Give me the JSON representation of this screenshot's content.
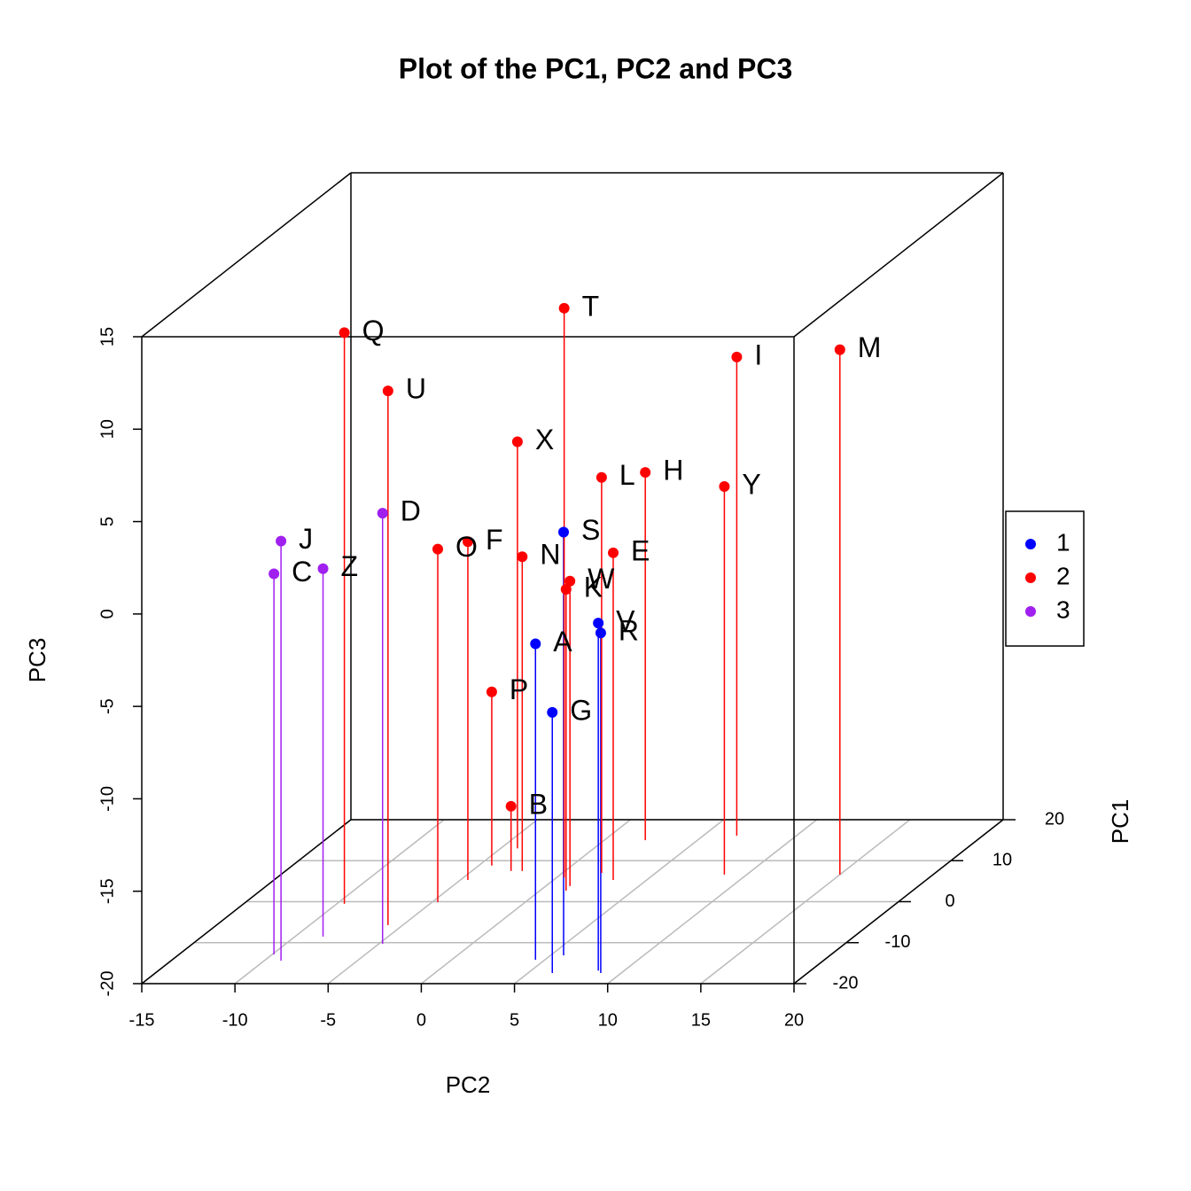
{
  "chart_data": {
    "type": "scatter3d",
    "title": "Plot of the PC1, PC2 and PC3",
    "x_label": "PC2",
    "y_label": "PC1",
    "z_label": "PC3",
    "xlim": [
      -15,
      20
    ],
    "xticks": [
      -15,
      -10,
      -5,
      0,
      5,
      10,
      15,
      20
    ],
    "ylim": [
      -20,
      20
    ],
    "yticks": [
      -20,
      -10,
      0,
      10,
      20
    ],
    "zlim": [
      -20,
      15
    ],
    "zticks": [
      -20,
      -15,
      -10,
      -5,
      0,
      5,
      10,
      15
    ],
    "grid": true,
    "legend": "right",
    "series": [
      {
        "name": "1",
        "color": "#0000ff",
        "labels": [
          "S",
          "A",
          "G",
          "V",
          "R"
        ],
        "x": [
          5.7,
          4.5,
          6.3,
          8.6,
          8.9
        ],
        "y": [
          -13.1,
          -14.2,
          -17.4,
          -16.8,
          -17.4
        ],
        "z": [
          2.9,
          -2.9,
          -5.9,
          -1.2,
          -1.6
        ]
      },
      {
        "name": "2",
        "color": "#ff0000",
        "labels": [
          "Q",
          "U",
          "T",
          "M",
          "I",
          "Y",
          "H",
          "L",
          "X",
          "N",
          "E",
          "F",
          "O",
          "W",
          "K",
          "P",
          "B"
        ],
        "x": [
          -9.6,
          -5.8,
          0.4,
          15.0,
          6.8,
          8.8,
          2.2,
          2.1,
          -4.1,
          -2.3,
          3.2,
          -4.6,
          -4.7,
          1.3,
          1.4,
          -4.3,
          -2.9
        ],
        "y": [
          -0.5,
          -5.7,
          5.9,
          6.6,
          16.1,
          6.6,
          15.0,
          7.0,
          13.0,
          7.5,
          5.3,
          5.3,
          -0.1,
          3.8,
          2.7,
          8.8,
          7.5
        ],
        "z": [
          10.9,
          8.9,
          10.8,
          8.4,
          5.9,
          1.0,
          -0.1,
          1.4,
          2.0,
          -3.0,
          -2.3,
          -1.7,
          -0.9,
          -3.5,
          -3.7,
          -10.6,
          -16.5
        ]
      },
      {
        "name": "3",
        "color": "#a020f0",
        "labels": [
          "J",
          "C",
          "Z",
          "D"
        ],
        "x": [
          -9.1,
          -9.9,
          -8.5,
          -4.8
        ],
        "y": [
          -14.4,
          -12.9,
          -8.5,
          -10.3
        ],
        "z": [
          2.7,
          0.6,
          -0.1,
          3.3
        ]
      }
    ]
  }
}
